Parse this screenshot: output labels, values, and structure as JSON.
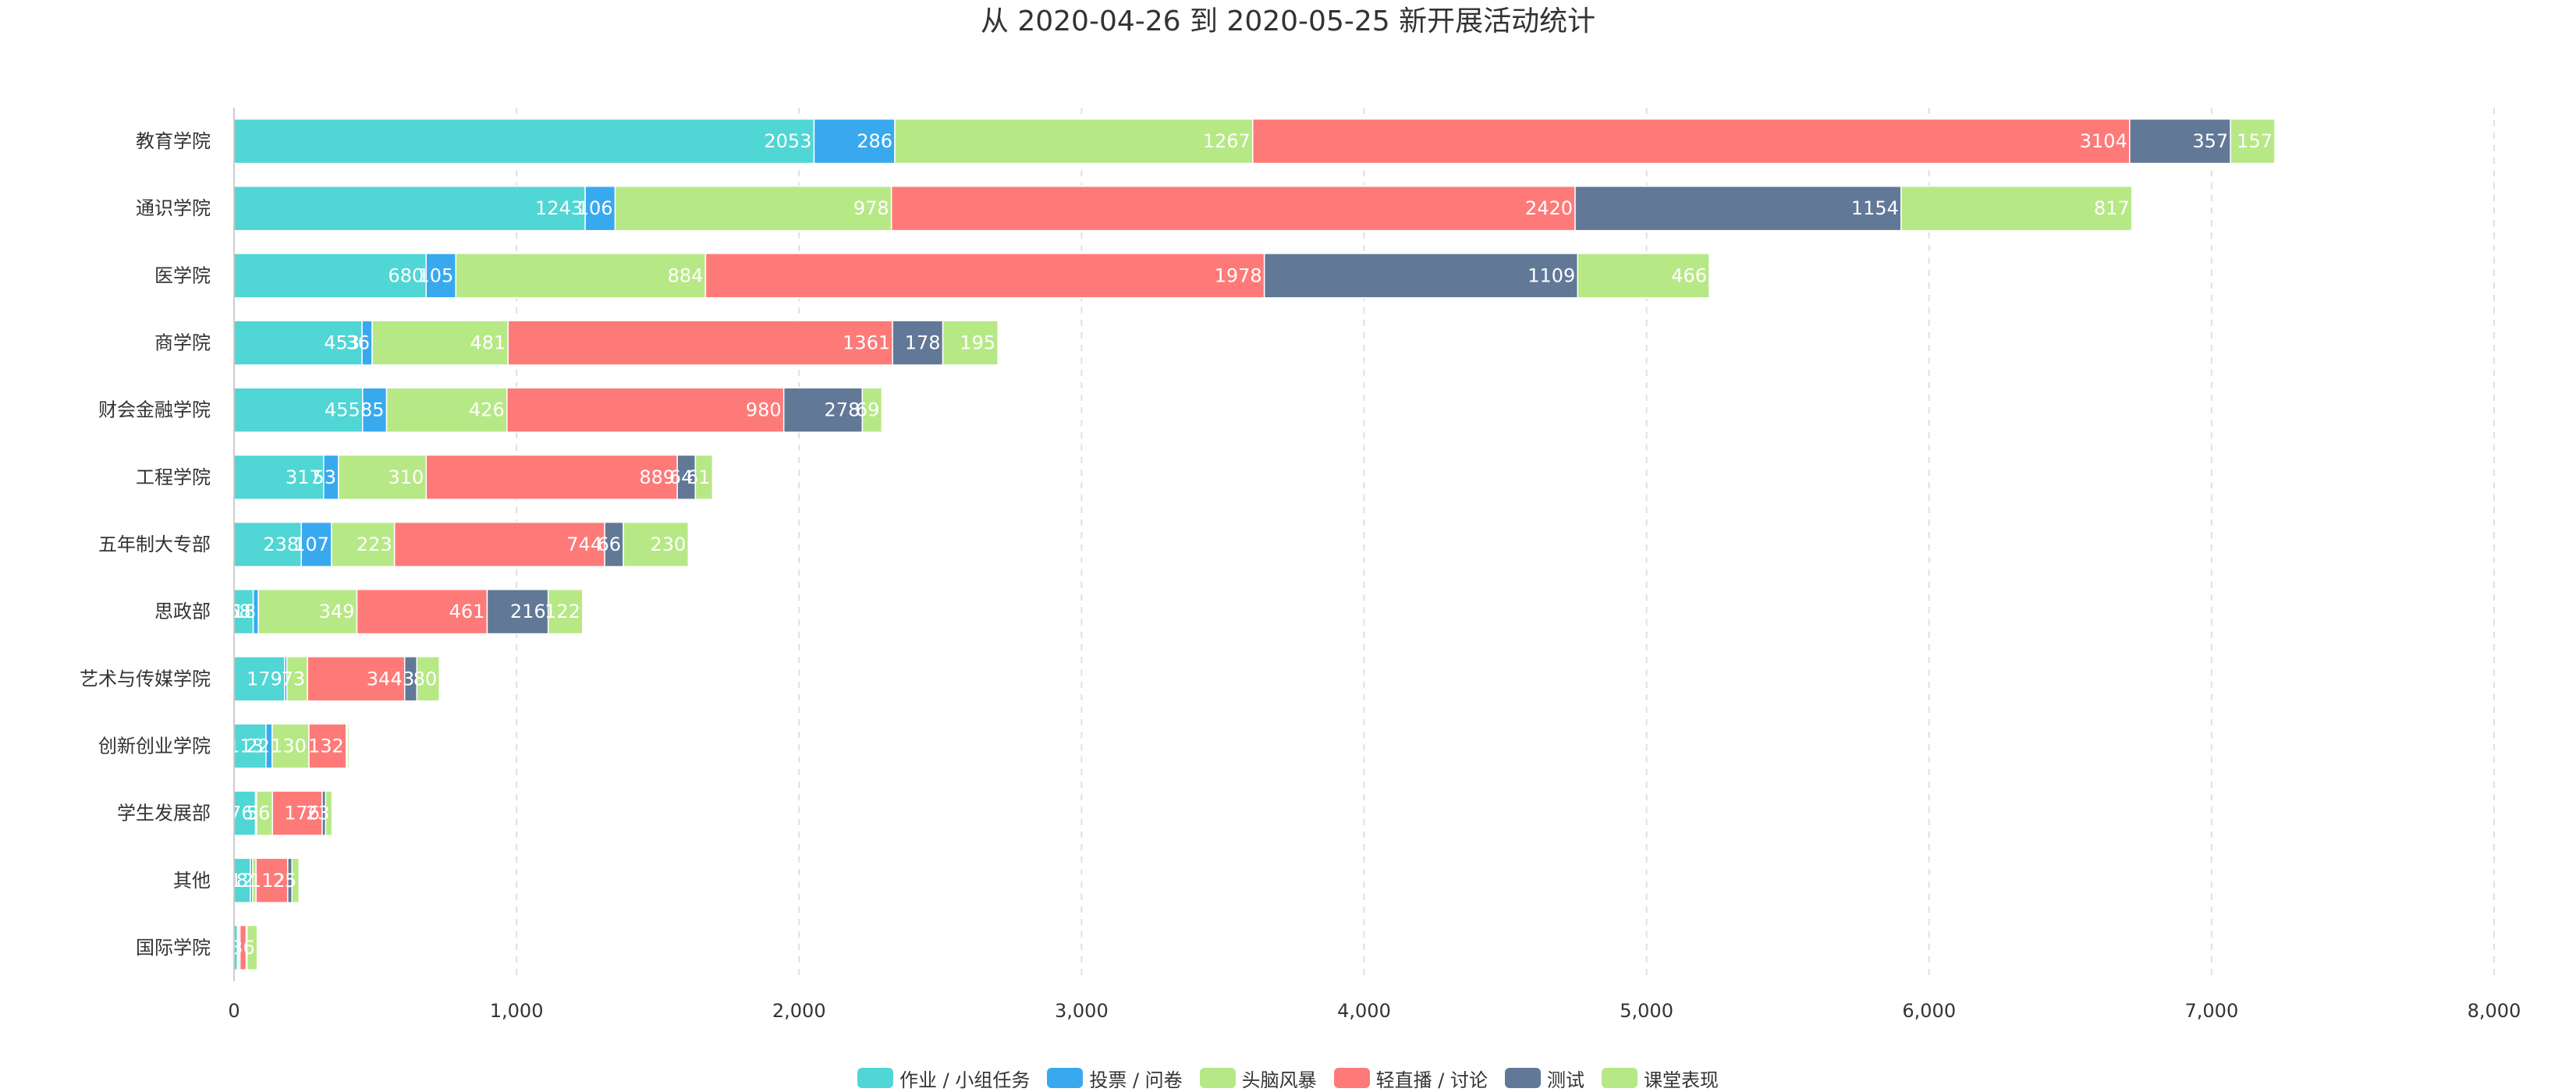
{
  "chart_data": {
    "type": "bar",
    "orientation": "horizontal",
    "stacked": true,
    "title": "从 2020-04-26 到 2020-05-25 新开展活动统计",
    "categories": [
      "教育学院",
      "通识学院",
      "医学院",
      "商学院",
      "财会金融学院",
      "工程学院",
      "五年制大专部",
      "思政部",
      "艺术与传媒学院",
      "创新创业学院",
      "学生发展部",
      "其他",
      "国际学院"
    ],
    "series": [
      {
        "name": "作业 / 小组任务",
        "color": "#50d6d4",
        "values": [
          2053,
          1243,
          680,
          453,
          455,
          317,
          238,
          68,
          179,
          113,
          76,
          58,
          12
        ]
      },
      {
        "name": "投票 / 问卷",
        "color": "#39a9ef",
        "values": [
          286,
          106,
          105,
          36,
          85,
          53,
          107,
          18,
          8,
          22,
          4,
          8,
          3
        ]
      },
      {
        "name": "头脑风暴",
        "color": "#b7e886",
        "values": [
          1267,
          978,
          884,
          481,
          426,
          310,
          223,
          349,
          73,
          130,
          56,
          12,
          6
        ]
      },
      {
        "name": "轻直播 / 讨论",
        "color": "#fe7a78",
        "values": [
          3104,
          2420,
          1978,
          1361,
          980,
          889,
          744,
          461,
          344,
          132,
          176,
          112,
          22
        ]
      },
      {
        "name": "测试",
        "color": "#627897",
        "values": [
          357,
          1154,
          1109,
          178,
          278,
          64,
          66,
          216,
          43,
          4,
          12,
          15,
          3
        ]
      },
      {
        "name": "课堂表现",
        "color": "#b7e886",
        "values": [
          157,
          817,
          466,
          195,
          69,
          61,
          230,
          122,
          80,
          6,
          23,
          25,
          36
        ]
      }
    ],
    "data_labels": [
      [
        "2053",
        "286",
        "1267",
        "3104",
        "357",
        "157"
      ],
      [
        "1243",
        "106",
        "978",
        "2420",
        "1154",
        "817"
      ],
      [
        "680",
        "105",
        "884",
        "1978",
        "1109",
        "466"
      ],
      [
        "453",
        "36",
        "481",
        "1361",
        "178",
        "195"
      ],
      [
        "455",
        "85",
        "426",
        "980",
        "278",
        "69"
      ],
      [
        "317",
        "53",
        "310",
        "889",
        "64",
        "61"
      ],
      [
        "238",
        "107",
        "223",
        "744",
        "66",
        "230"
      ],
      [
        "68",
        "18",
        "349",
        "461",
        "216",
        "122"
      ],
      [
        "179",
        "",
        "73",
        "344",
        "43",
        "80"
      ],
      [
        "113",
        "22",
        "130",
        "132",
        "",
        ""
      ],
      [
        "76",
        "",
        "56",
        "176",
        "",
        "23"
      ],
      [
        "58",
        "",
        "12",
        "112",
        "",
        "25"
      ],
      [
        "12",
        "",
        "",
        "",
        "",
        "36"
      ]
    ],
    "xlim": [
      0,
      8000
    ],
    "xticks": [
      0,
      1000,
      2000,
      3000,
      4000,
      5000,
      6000,
      7000,
      8000
    ],
    "xtick_labels": [
      "0",
      "1,000",
      "2,000",
      "3,000",
      "4,000",
      "5,000",
      "6,000",
      "7,000",
      "8,000"
    ],
    "xlabel": "",
    "ylabel": "",
    "grid": "vertical dashed",
    "legend_position": "bottom-center"
  }
}
